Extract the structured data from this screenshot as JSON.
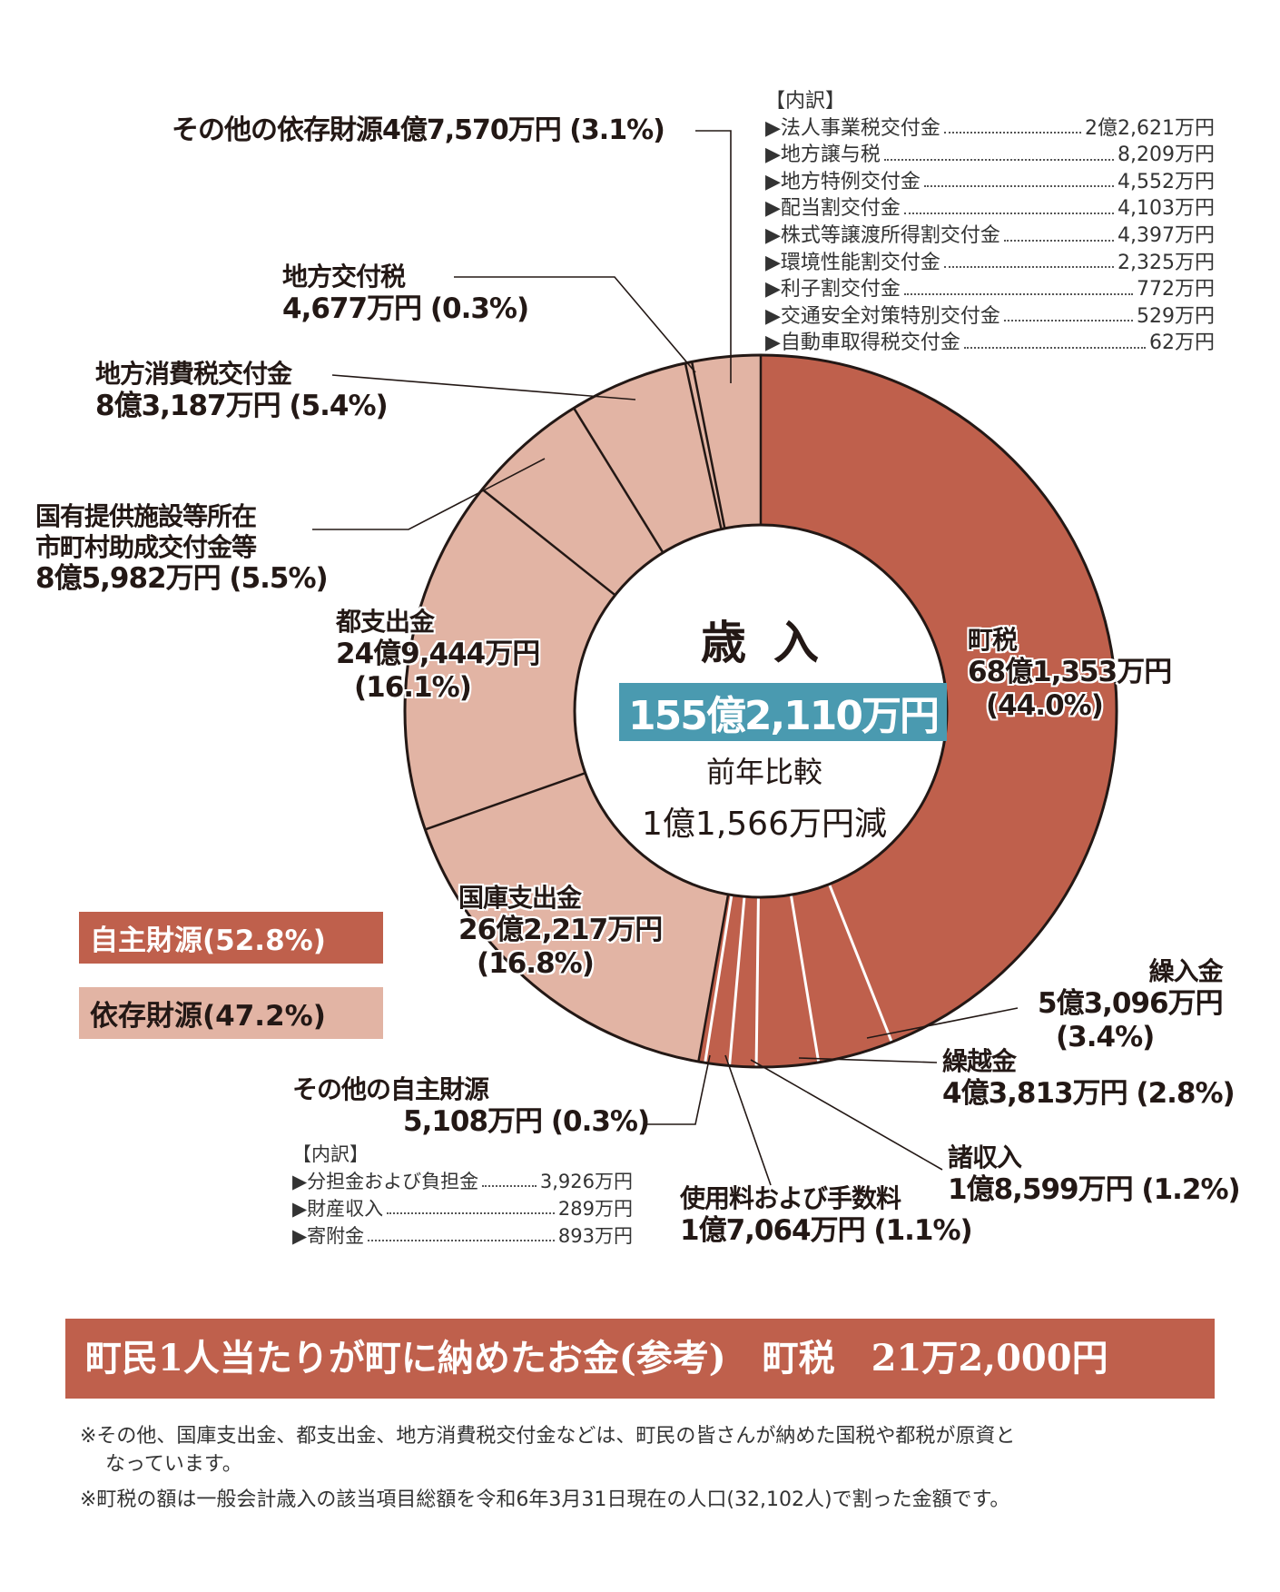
{
  "chart_data": {
    "type": "pie",
    "title": "歳入",
    "total": "155億2,110万円",
    "comparison_label": "前年比較",
    "comparison_value": "1億1,566万円減",
    "start": "top",
    "direction": "clockwise",
    "colors": {
      "own_source": "#bf604c",
      "dependent_source": "#e2b4a4",
      "total_box": "#4a9ab0"
    },
    "groups": [
      {
        "name": "自主財源(52.8%)",
        "percent": 52.8,
        "color": "#bf604c"
      },
      {
        "name": "依存財源(47.2%)",
        "percent": 47.2,
        "color": "#e2b4a4"
      }
    ],
    "slices": [
      {
        "name": "町税",
        "amount": "68億1,353万円",
        "percent": 44.0,
        "group": "own"
      },
      {
        "name": "繰入金",
        "amount": "5億3,096万円",
        "percent": 3.4,
        "group": "own"
      },
      {
        "name": "繰越金",
        "amount": "4億3,813万円",
        "percent": 2.8,
        "group": "own"
      },
      {
        "name": "諸収入",
        "amount": "1億8,599万円",
        "percent": 1.2,
        "group": "own"
      },
      {
        "name": "使用料および手数料",
        "amount": "1億7,064万円",
        "percent": 1.1,
        "group": "own"
      },
      {
        "name": "その他の自主財源",
        "amount": "5,108万円",
        "percent": 0.3,
        "group": "own"
      },
      {
        "name": "国庫支出金",
        "amount": "26億2,217万円",
        "percent": 16.8,
        "group": "dep"
      },
      {
        "name": "都支出金",
        "amount": "24億9,444万円",
        "percent": 16.1,
        "group": "dep"
      },
      {
        "name": "国有提供施設等所在市町村助成交付金等",
        "amount": "8億5,982万円",
        "percent": 5.5,
        "group": "dep"
      },
      {
        "name": "地方消費税交付金",
        "amount": "8億3,187万円",
        "percent": 5.4,
        "group": "dep"
      },
      {
        "name": "地方交付税",
        "amount": "4,677万円",
        "percent": 0.3,
        "group": "dep"
      },
      {
        "name": "その他の依存財源",
        "amount": "4億7,570万円",
        "percent": 3.1,
        "group": "dep"
      }
    ]
  },
  "labels": {
    "choze": {
      "name": "町税",
      "amount": "68億1,353万円",
      "pct": "(44.0%)"
    },
    "kurire": {
      "name": "繰入金",
      "amount": "5億3,096万円",
      "pct": "(3.4%)"
    },
    "kurikoshi": {
      "name": "繰越金",
      "amount": "4億3,813万円 (2.8%)"
    },
    "shoshu": {
      "name": "諸収入",
      "amount": "1億8,599万円 (1.2%)"
    },
    "shiyo": {
      "name": "使用料および手数料",
      "amount": "1億7,064万円 (1.1%)"
    },
    "other_own": {
      "name": "その他の自主財源",
      "amount": "5,108万円 (0.3%)"
    },
    "kokko": {
      "name": "国庫支出金",
      "amount": "26億2,217万円",
      "pct": "(16.8%)"
    },
    "toshi": {
      "name": "都支出金",
      "amount": "24億9,444万円",
      "pct": "(16.1%)"
    },
    "kokuyu": {
      "name1": "国有提供施設等所在",
      "name2": "市町村助成交付金等",
      "amount": "8億5,982万円 (5.5%)"
    },
    "chihoshohi": {
      "name": "地方消費税交付金",
      "amount": "8億3,187万円 (5.4%)"
    },
    "chihokofu": {
      "name": "地方交付税",
      "amount": "4,677万円 (0.3%)"
    },
    "other_dep": {
      "text": "その他の依存財源4億7,570万円 (3.1%)"
    }
  },
  "dep_breakdown": {
    "heading": "【内訳】",
    "items": [
      {
        "name": "▶法人事業税交付金",
        "amount": "2億2,621万円"
      },
      {
        "name": "▶地方譲与税",
        "amount": "8,209万円"
      },
      {
        "name": "▶地方特例交付金",
        "amount": "4,552万円"
      },
      {
        "name": "▶配当割交付金",
        "amount": "4,103万円"
      },
      {
        "name": "▶株式等譲渡所得割交付金",
        "amount": "4,397万円"
      },
      {
        "name": "▶環境性能割交付金",
        "amount": "2,325万円"
      },
      {
        "name": "▶利子割交付金",
        "amount": "772万円"
      },
      {
        "name": "▶交通安全対策特別交付金",
        "amount": "529万円"
      },
      {
        "name": "▶自動車取得税交付金",
        "amount": "62万円"
      }
    ]
  },
  "own_breakdown": {
    "heading": "【内訳】",
    "items": [
      {
        "name": "▶分担金および負担金",
        "amount": "3,926万円"
      },
      {
        "name": "▶財産収入",
        "amount": "289万円"
      },
      {
        "name": "▶寄附金",
        "amount": "893万円"
      }
    ]
  },
  "legend": {
    "own": "自主財源(52.8%)",
    "dep": "依存財源(47.2%)"
  },
  "footer": {
    "banner": "町民1人当たりが町に納めたお金(参考)　町税　21万2,000円",
    "note1": "※その他、国庫支出金、都支出金、地方消費税交付金などは、町民の皆さんが納めた国税や都税が原資と",
    "note1b": "なっています。",
    "note2": "※町税の額は一般会計歳入の該当項目総額を令和6年3月31日現在の人口(32,102人)で割った金額です。"
  }
}
